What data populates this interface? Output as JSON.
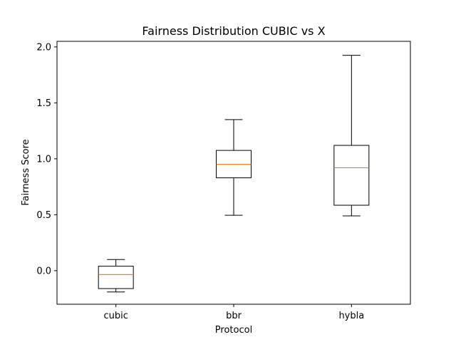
{
  "chart_data": {
    "type": "box",
    "title": "Fairness Distribution CUBIC vs X",
    "xlabel": "Protocol",
    "ylabel": "Fairness Score",
    "categories": [
      "cubic",
      "bbr",
      "hybla"
    ],
    "boxes": [
      {
        "category": "cubic",
        "whisker_low": -0.19,
        "q1": -0.16,
        "median": -0.035,
        "q3": 0.04,
        "whisker_high": 0.1
      },
      {
        "category": "bbr",
        "whisker_low": 0.495,
        "q1": 0.83,
        "median": 0.95,
        "q3": 1.075,
        "whisker_high": 1.35
      },
      {
        "category": "hybla",
        "whisker_low": 0.49,
        "q1": 0.585,
        "median": 0.92,
        "q3": 1.12,
        "whisker_high": 1.925
      }
    ],
    "ylim": [
      -0.3,
      2.05
    ],
    "yticks": [
      0.0,
      0.5,
      1.0,
      1.5,
      2.0
    ],
    "ytick_labels": [
      "0.0",
      "0.5",
      "1.0",
      "1.5",
      "2.0"
    ],
    "grid": false,
    "colors": {
      "box": "#000000",
      "median": "#ff7f0e",
      "background": "#ffffff"
    }
  }
}
